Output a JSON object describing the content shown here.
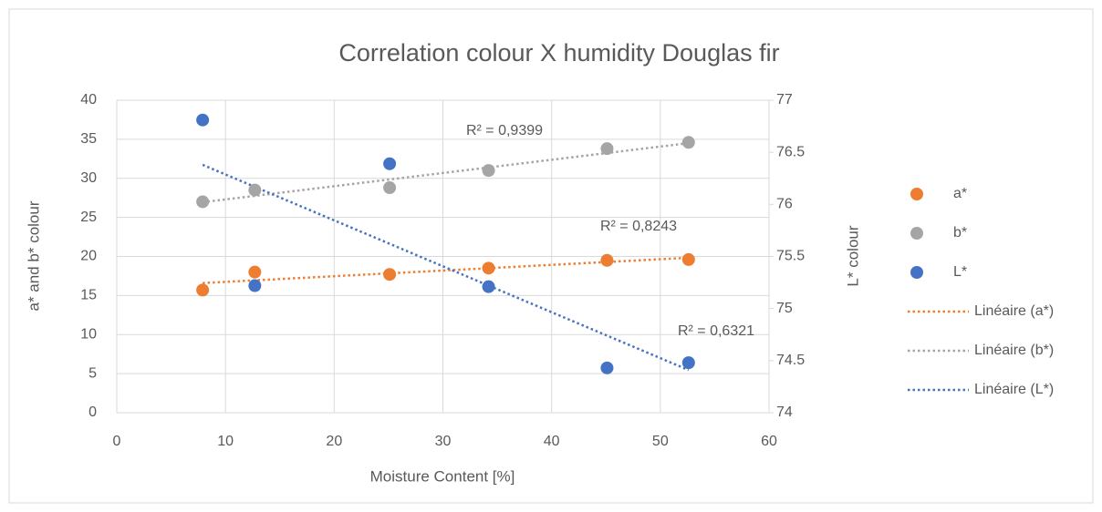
{
  "chart_data": {
    "type": "scatter",
    "title": "Correlation colour X humidity Douglas fir",
    "x_label": "Moisture Content [%]",
    "y_label": "a* and b* colour",
    "y2_label": "L* colour",
    "x": [
      7.9,
      12.7,
      25.1,
      34.2,
      45.1,
      52.6
    ],
    "series": [
      {
        "name": "a*",
        "color": "#ed7d31",
        "values": [
          15.7,
          18.0,
          17.7,
          18.5,
          19.5,
          19.6
        ]
      },
      {
        "name": "b*",
        "color": "#a5a5a5",
        "values": [
          27.0,
          28.5,
          28.8,
          31.0,
          33.8,
          34.6
        ]
      },
      {
        "name": "L*",
        "color": "#4472c4",
        "axis": "y2",
        "values": [
          76.81,
          75.22,
          76.39,
          75.21,
          74.43,
          74.48
        ]
      }
    ],
    "trendlines": [
      {
        "name": "Linéaire (a*)",
        "series": 0,
        "label": "R² = 0,8243"
      },
      {
        "name": "Linéaire (b*)",
        "series": 1,
        "label": "R² = 0,9399"
      },
      {
        "name": "Linéaire (L*)",
        "series": 2,
        "label": "R² = 0,6321"
      }
    ],
    "xlim": [
      0,
      60
    ],
    "xticks": [
      0,
      10,
      20,
      30,
      40,
      50,
      60
    ],
    "ylim": [
      0,
      40
    ],
    "yticks": [
      0,
      5,
      10,
      15,
      20,
      25,
      30,
      35,
      40
    ],
    "y2lim": [
      74,
      77
    ],
    "y2ticks": [
      74,
      74.5,
      75,
      75.5,
      76,
      76.5,
      77
    ],
    "grid": true
  }
}
